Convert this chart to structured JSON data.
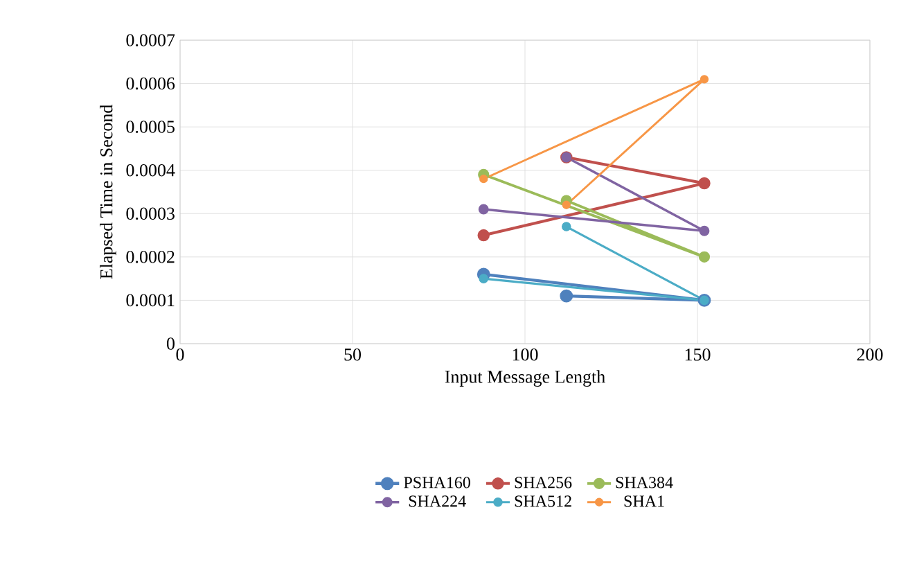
{
  "chart_data": {
    "type": "line",
    "xlabel": "Input Message Length",
    "ylabel": "Elapsed Time in Second",
    "xlim": [
      0,
      200
    ],
    "xticks": [
      0,
      50,
      100,
      150,
      200
    ],
    "ylim": [
      0,
      0.0007
    ],
    "yticks": [
      0,
      0.0001,
      0.0002,
      0.0003,
      0.0004,
      0.0005,
      0.0006,
      0.0007
    ],
    "grid": true,
    "legend": "bottom",
    "marker": "circle",
    "line_style": "solid",
    "series": [
      {
        "name": "PSHA160",
        "color": "#4f81bd",
        "x": [
          112,
          152,
          88
        ],
        "values": [
          0.00011,
          0.0001,
          0.00016
        ]
      },
      {
        "name": "SHA256",
        "color": "#c0504d",
        "x": [
          112,
          152,
          88
        ],
        "values": [
          0.00043,
          0.00037,
          0.00025
        ]
      },
      {
        "name": "SHA384",
        "color": "#9bbb59",
        "x": [
          112,
          152,
          88
        ],
        "values": [
          0.00033,
          0.0002,
          0.00039
        ]
      },
      {
        "name": "SHA224",
        "color": "#8064a2",
        "x": [
          112,
          152,
          88
        ],
        "values": [
          0.00043,
          0.00026,
          0.00031
        ]
      },
      {
        "name": "SHA512",
        "color": "#4bacc6",
        "x": [
          112,
          152,
          88
        ],
        "values": [
          0.00027,
          0.0001,
          0.00015
        ]
      },
      {
        "name": "SHA1",
        "color": "#f79646",
        "x": [
          112,
          152,
          88
        ],
        "values": [
          0.00032,
          0.00061,
          0.00038
        ]
      }
    ]
  }
}
